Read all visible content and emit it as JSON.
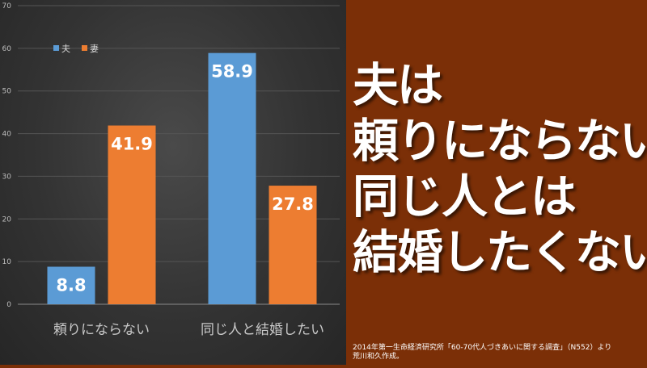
{
  "chart_data": {
    "type": "bar",
    "categories": [
      "頼りにならない",
      "同じ人と結婚したい"
    ],
    "series": [
      {
        "name": "夫",
        "values": [
          8.8,
          58.9
        ],
        "color": "#5b9bd5"
      },
      {
        "name": "妻",
        "values": [
          41.9,
          27.8
        ],
        "color": "#ed7d31"
      }
    ],
    "ylim": [
      0,
      70
    ],
    "yticks": [
      0,
      10,
      20,
      30,
      40,
      50,
      60,
      70
    ],
    "legend_position": "top-left",
    "grid": true,
    "data_labels": true
  },
  "headline": {
    "lines": [
      "夫は",
      "頼りにならない",
      "同じ人とは",
      "結婚したくない"
    ]
  },
  "source": {
    "line1": "2014年第一生命経済研究所「60-70代人づきあいに関する調査」（N552）より",
    "line2": "荒川和久作成。"
  },
  "colors": {
    "background_right": "#7b2f07",
    "chart_background": "#333333"
  }
}
